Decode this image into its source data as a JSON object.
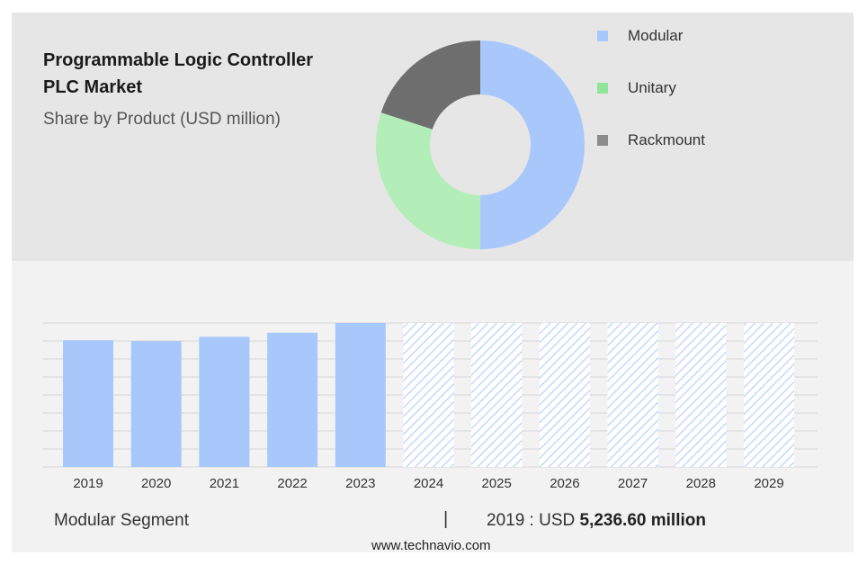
{
  "header": {
    "title_line1": "Programmable Logic Controller",
    "title_line2": "PLC Market",
    "subtitle": "Share by Product (USD million)"
  },
  "legend": [
    {
      "label": "Modular",
      "color": "#a8c8fb"
    },
    {
      "label": "Unitary",
      "color": "#8fe59a"
    },
    {
      "label": "Rackmount",
      "color": "#8c8c8c"
    }
  ],
  "chart_data": [
    {
      "type": "pie",
      "subtype": "donut",
      "title": "Share by Product (USD million)",
      "slices": [
        {
          "label": "Modular",
          "value": 50,
          "color": "#a8c8fb"
        },
        {
          "label": "Unitary",
          "value": 30,
          "color": "#b3eeb8"
        },
        {
          "label": "Rackmount",
          "value": 20,
          "color": "#6e6e6e"
        }
      ]
    },
    {
      "type": "bar",
      "categories": [
        "2019",
        "2020",
        "2021",
        "2022",
        "2023",
        "2024",
        "2025",
        "2026",
        "2027",
        "2028",
        "2029"
      ],
      "values": [
        5236.6,
        5200,
        5380,
        5550,
        5950,
        null,
        null,
        null,
        null,
        null,
        null
      ],
      "forecast_categories": [
        "2024",
        "2025",
        "2026",
        "2027",
        "2028",
        "2029"
      ],
      "ylim": [
        0,
        5950
      ],
      "grid": true,
      "bar_color": "#a8c8fb"
    }
  ],
  "footer": {
    "segment": "Modular Segment",
    "separator": "|",
    "value_prefix": "2019 : USD",
    "value_bold": "5,236.60 million",
    "website": "www.technavio.com"
  }
}
